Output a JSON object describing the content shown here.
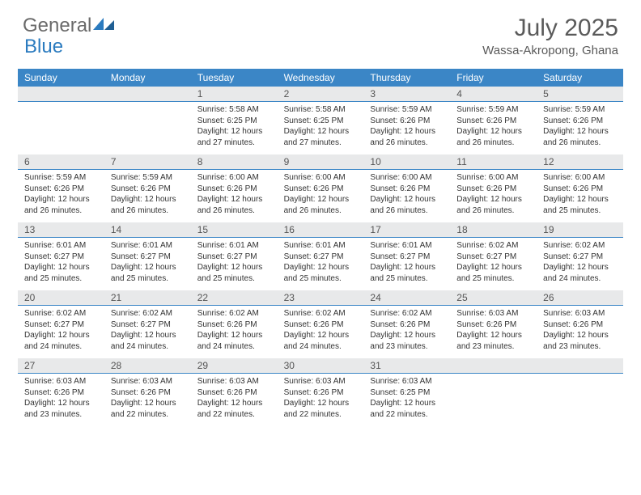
{
  "logo": {
    "part1": "General",
    "part2": "Blue"
  },
  "title": {
    "month": "July 2025",
    "location": "Wassa-Akropong, Ghana"
  },
  "colors": {
    "header_bg": "#3b86c6",
    "header_text": "#ffffff",
    "daynum_bg": "#e8e9ea",
    "divider": "#3b86c6",
    "text": "#333333",
    "title_text": "#5a5a5a",
    "logo_gray": "#6a6a6a",
    "logo_blue": "#2b7bbf"
  },
  "dayNames": [
    "Sunday",
    "Monday",
    "Tuesday",
    "Wednesday",
    "Thursday",
    "Friday",
    "Saturday"
  ],
  "weeks": [
    {
      "nums": [
        "",
        "",
        "1",
        "2",
        "3",
        "4",
        "5"
      ],
      "cells": [
        null,
        null,
        {
          "sr": "Sunrise: 5:58 AM",
          "ss": "Sunset: 6:25 PM",
          "d1": "Daylight: 12 hours",
          "d2": "and 27 minutes."
        },
        {
          "sr": "Sunrise: 5:58 AM",
          "ss": "Sunset: 6:25 PM",
          "d1": "Daylight: 12 hours",
          "d2": "and 27 minutes."
        },
        {
          "sr": "Sunrise: 5:59 AM",
          "ss": "Sunset: 6:26 PM",
          "d1": "Daylight: 12 hours",
          "d2": "and 26 minutes."
        },
        {
          "sr": "Sunrise: 5:59 AM",
          "ss": "Sunset: 6:26 PM",
          "d1": "Daylight: 12 hours",
          "d2": "and 26 minutes."
        },
        {
          "sr": "Sunrise: 5:59 AM",
          "ss": "Sunset: 6:26 PM",
          "d1": "Daylight: 12 hours",
          "d2": "and 26 minutes."
        }
      ]
    },
    {
      "nums": [
        "6",
        "7",
        "8",
        "9",
        "10",
        "11",
        "12"
      ],
      "cells": [
        {
          "sr": "Sunrise: 5:59 AM",
          "ss": "Sunset: 6:26 PM",
          "d1": "Daylight: 12 hours",
          "d2": "and 26 minutes."
        },
        {
          "sr": "Sunrise: 5:59 AM",
          "ss": "Sunset: 6:26 PM",
          "d1": "Daylight: 12 hours",
          "d2": "and 26 minutes."
        },
        {
          "sr": "Sunrise: 6:00 AM",
          "ss": "Sunset: 6:26 PM",
          "d1": "Daylight: 12 hours",
          "d2": "and 26 minutes."
        },
        {
          "sr": "Sunrise: 6:00 AM",
          "ss": "Sunset: 6:26 PM",
          "d1": "Daylight: 12 hours",
          "d2": "and 26 minutes."
        },
        {
          "sr": "Sunrise: 6:00 AM",
          "ss": "Sunset: 6:26 PM",
          "d1": "Daylight: 12 hours",
          "d2": "and 26 minutes."
        },
        {
          "sr": "Sunrise: 6:00 AM",
          "ss": "Sunset: 6:26 PM",
          "d1": "Daylight: 12 hours",
          "d2": "and 26 minutes."
        },
        {
          "sr": "Sunrise: 6:00 AM",
          "ss": "Sunset: 6:26 PM",
          "d1": "Daylight: 12 hours",
          "d2": "and 25 minutes."
        }
      ]
    },
    {
      "nums": [
        "13",
        "14",
        "15",
        "16",
        "17",
        "18",
        "19"
      ],
      "cells": [
        {
          "sr": "Sunrise: 6:01 AM",
          "ss": "Sunset: 6:27 PM",
          "d1": "Daylight: 12 hours",
          "d2": "and 25 minutes."
        },
        {
          "sr": "Sunrise: 6:01 AM",
          "ss": "Sunset: 6:27 PM",
          "d1": "Daylight: 12 hours",
          "d2": "and 25 minutes."
        },
        {
          "sr": "Sunrise: 6:01 AM",
          "ss": "Sunset: 6:27 PM",
          "d1": "Daylight: 12 hours",
          "d2": "and 25 minutes."
        },
        {
          "sr": "Sunrise: 6:01 AM",
          "ss": "Sunset: 6:27 PM",
          "d1": "Daylight: 12 hours",
          "d2": "and 25 minutes."
        },
        {
          "sr": "Sunrise: 6:01 AM",
          "ss": "Sunset: 6:27 PM",
          "d1": "Daylight: 12 hours",
          "d2": "and 25 minutes."
        },
        {
          "sr": "Sunrise: 6:02 AM",
          "ss": "Sunset: 6:27 PM",
          "d1": "Daylight: 12 hours",
          "d2": "and 25 minutes."
        },
        {
          "sr": "Sunrise: 6:02 AM",
          "ss": "Sunset: 6:27 PM",
          "d1": "Daylight: 12 hours",
          "d2": "and 24 minutes."
        }
      ]
    },
    {
      "nums": [
        "20",
        "21",
        "22",
        "23",
        "24",
        "25",
        "26"
      ],
      "cells": [
        {
          "sr": "Sunrise: 6:02 AM",
          "ss": "Sunset: 6:27 PM",
          "d1": "Daylight: 12 hours",
          "d2": "and 24 minutes."
        },
        {
          "sr": "Sunrise: 6:02 AM",
          "ss": "Sunset: 6:27 PM",
          "d1": "Daylight: 12 hours",
          "d2": "and 24 minutes."
        },
        {
          "sr": "Sunrise: 6:02 AM",
          "ss": "Sunset: 6:26 PM",
          "d1": "Daylight: 12 hours",
          "d2": "and 24 minutes."
        },
        {
          "sr": "Sunrise: 6:02 AM",
          "ss": "Sunset: 6:26 PM",
          "d1": "Daylight: 12 hours",
          "d2": "and 24 minutes."
        },
        {
          "sr": "Sunrise: 6:02 AM",
          "ss": "Sunset: 6:26 PM",
          "d1": "Daylight: 12 hours",
          "d2": "and 23 minutes."
        },
        {
          "sr": "Sunrise: 6:03 AM",
          "ss": "Sunset: 6:26 PM",
          "d1": "Daylight: 12 hours",
          "d2": "and 23 minutes."
        },
        {
          "sr": "Sunrise: 6:03 AM",
          "ss": "Sunset: 6:26 PM",
          "d1": "Daylight: 12 hours",
          "d2": "and 23 minutes."
        }
      ]
    },
    {
      "nums": [
        "27",
        "28",
        "29",
        "30",
        "31",
        "",
        ""
      ],
      "cells": [
        {
          "sr": "Sunrise: 6:03 AM",
          "ss": "Sunset: 6:26 PM",
          "d1": "Daylight: 12 hours",
          "d2": "and 23 minutes."
        },
        {
          "sr": "Sunrise: 6:03 AM",
          "ss": "Sunset: 6:26 PM",
          "d1": "Daylight: 12 hours",
          "d2": "and 22 minutes."
        },
        {
          "sr": "Sunrise: 6:03 AM",
          "ss": "Sunset: 6:26 PM",
          "d1": "Daylight: 12 hours",
          "d2": "and 22 minutes."
        },
        {
          "sr": "Sunrise: 6:03 AM",
          "ss": "Sunset: 6:26 PM",
          "d1": "Daylight: 12 hours",
          "d2": "and 22 minutes."
        },
        {
          "sr": "Sunrise: 6:03 AM",
          "ss": "Sunset: 6:25 PM",
          "d1": "Daylight: 12 hours",
          "d2": "and 22 minutes."
        },
        null,
        null
      ]
    }
  ]
}
